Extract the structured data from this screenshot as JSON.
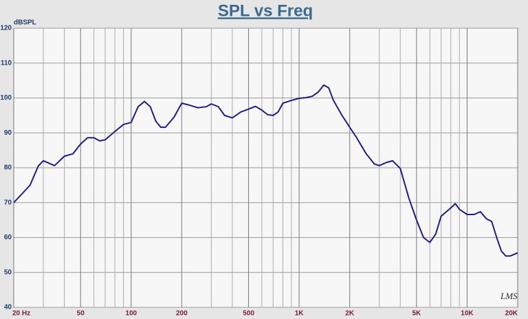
{
  "chart_data": {
    "type": "line",
    "title": "SPL vs Freq",
    "y_label": "dBSPL",
    "watermark": "LMS",
    "x_scale": "log",
    "grid": true,
    "color": "#1c1c86",
    "xlim": [
      20,
      20000
    ],
    "xticks": [
      {
        "value": 20,
        "label": "20  Hz"
      },
      50,
      100,
      200,
      500,
      {
        "value": 1000,
        "label": "1K"
      },
      {
        "value": 2000,
        "label": "2K"
      },
      {
        "value": 5000,
        "label": "5K"
      },
      {
        "value": 10000,
        "label": "10K"
      },
      {
        "value": 20000,
        "label": "20K"
      }
    ],
    "xgrid_minor": [
      30,
      40,
      60,
      70,
      80,
      90,
      300,
      400,
      600,
      700,
      800,
      900,
      3000,
      4000,
      6000,
      7000,
      8000,
      9000
    ],
    "ylim": [
      40,
      120
    ],
    "yticks": [
      40,
      50,
      60,
      70,
      80,
      90,
      100,
      110,
      120
    ],
    "x": [
      20,
      25,
      28,
      30,
      35,
      40,
      45,
      50,
      55,
      60,
      65,
      70,
      80,
      90,
      100,
      110,
      120,
      130,
      140,
      150,
      160,
      180,
      200,
      220,
      250,
      280,
      300,
      330,
      360,
      400,
      450,
      500,
      550,
      600,
      650,
      700,
      750,
      800,
      900,
      1000,
      1100,
      1200,
      1300,
      1400,
      1500,
      1600,
      1800,
      2000,
      2200,
      2500,
      2800,
      3000,
      3300,
      3600,
      4000,
      4500,
      5000,
      5500,
      6000,
      6500,
      7000,
      8000,
      8500,
      9000,
      10000,
      11000,
      12000,
      13000,
      14000,
      15000,
      16000,
      17000,
      18000,
      20000
    ],
    "values": [
      70,
      75,
      80.5,
      82,
      80.6,
      83.3,
      84,
      86.8,
      88.6,
      88.6,
      87.7,
      88,
      90.4,
      92.4,
      93,
      97.5,
      99,
      97.5,
      93.4,
      91.6,
      91.6,
      94.5,
      98.5,
      98,
      97.2,
      97.5,
      98.3,
      97.5,
      95,
      94.3,
      96,
      96.8,
      97.6,
      96.5,
      95.2,
      95,
      96,
      98.5,
      99.3,
      99.9,
      100.1,
      100.5,
      101.7,
      103.7,
      102.9,
      99.3,
      95,
      91.6,
      88.6,
      84.1,
      81.1,
      80.6,
      81.5,
      82,
      79.8,
      71.3,
      65,
      60,
      58.6,
      61,
      66.1,
      68.5,
      69.7,
      68.1,
      66.6,
      66.6,
      67.4,
      65.4,
      64.6,
      60,
      56.1,
      54.7,
      54.7,
      55.6
    ]
  }
}
